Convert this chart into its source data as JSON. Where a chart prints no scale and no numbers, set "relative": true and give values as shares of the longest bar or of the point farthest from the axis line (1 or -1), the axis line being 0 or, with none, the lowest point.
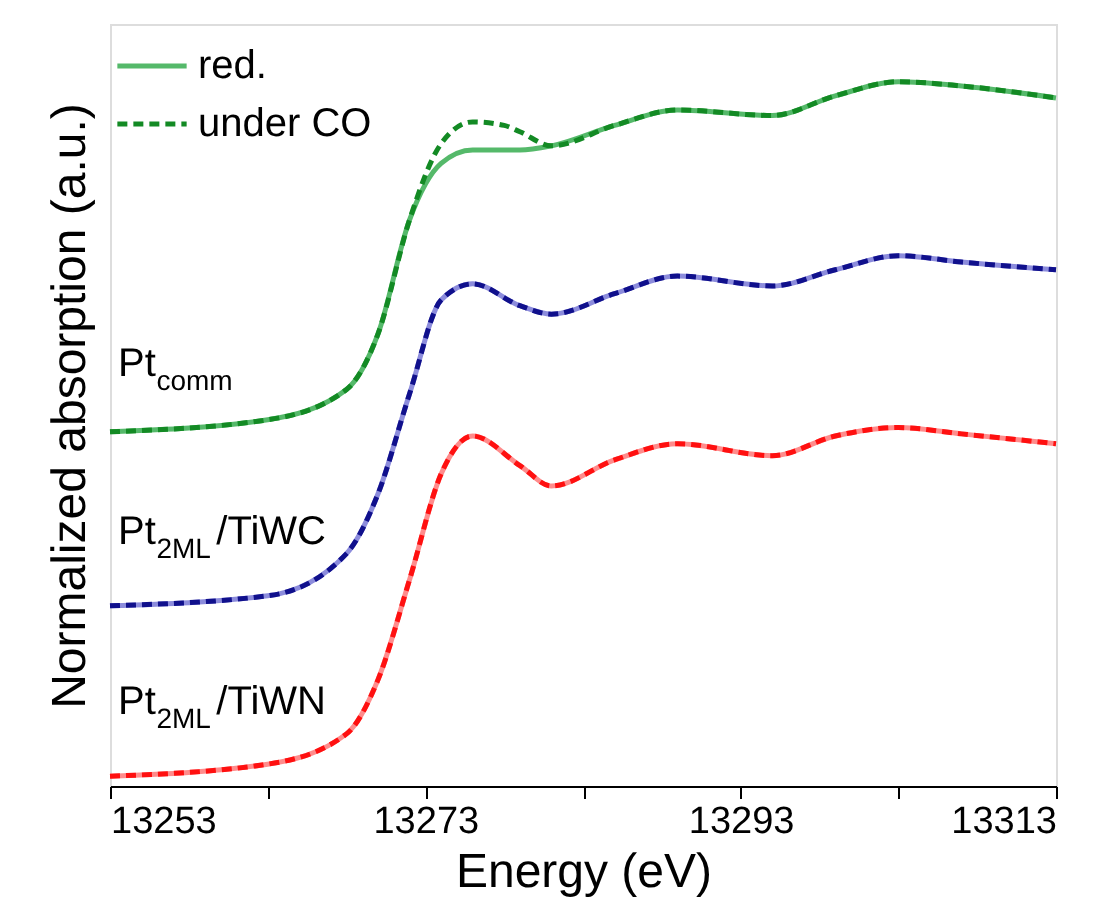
{
  "chart_data": {
    "type": "line",
    "relative": true,
    "xlabel": "Energy (eV)",
    "ylabel": "Normalized absorption (a.u.)",
    "x": [
      13253,
      13263,
      13268,
      13270,
      13272,
      13274,
      13276,
      13279,
      13281,
      13285,
      13289,
      13295,
      13299,
      13303,
      13307,
      13313
    ],
    "xlim": [
      13253,
      13313
    ],
    "xticks": [
      13253,
      {
        "value": 13263,
        "label": null
      },
      13273,
      {
        "value": 13283,
        "label": null
      },
      13293,
      {
        "value": 13303,
        "label": null
      },
      13313
    ],
    "legend": "top left",
    "grid": false,
    "series": [
      {
        "name": "red.",
        "color": "#55b96a",
        "line_style": "solid",
        "values": [
          0.503,
          0.52,
          0.563,
          0.642,
          0.804,
          0.884,
          0.903,
          0.903,
          0.909,
          0.938,
          0.96,
          0.952,
          0.98,
          1.0,
          0.994,
          0.977
        ]
      },
      {
        "name": "under CO",
        "color": "#138a24",
        "line_style": "dashed",
        "x": [
          13253,
          13263,
          13268,
          13270,
          13272,
          13274,
          13276,
          13278,
          13279,
          13281,
          13285,
          13289,
          13295,
          13299,
          13303,
          13307,
          13313
        ],
        "values": [
          0.503,
          0.52,
          0.563,
          0.642,
          0.804,
          0.912,
          0.943,
          0.938,
          0.929,
          0.909,
          0.938,
          0.96,
          0.952,
          0.98,
          1.0,
          0.994,
          0.977
        ]
      },
      {
        "color": "#8c8cdc",
        "line_style": "solid",
        "values": [
          0.256,
          0.27,
          0.33,
          0.415,
          0.557,
          0.69,
          0.713,
          0.682,
          0.67,
          0.699,
          0.724,
          0.71,
          0.733,
          0.753,
          0.744,
          0.733
        ]
      },
      {
        "color": "#10108c",
        "line_style": "dashed",
        "values": [
          0.256,
          0.27,
          0.33,
          0.415,
          0.557,
          0.69,
          0.713,
          0.682,
          0.67,
          0.699,
          0.724,
          0.71,
          0.733,
          0.753,
          0.744,
          0.733
        ]
      },
      {
        "color": "#ff8c8c",
        "line_style": "solid",
        "values": [
          0.014,
          0.031,
          0.074,
          0.151,
          0.293,
          0.443,
          0.497,
          0.455,
          0.426,
          0.463,
          0.486,
          0.469,
          0.497,
          0.509,
          0.5,
          0.486
        ]
      },
      {
        "color": "#ff1010",
        "line_style": "dashed",
        "values": [
          0.014,
          0.031,
          0.074,
          0.151,
          0.293,
          0.443,
          0.497,
          0.455,
          0.426,
          0.463,
          0.486,
          0.469,
          0.497,
          0.509,
          0.5,
          0.486
        ]
      }
    ],
    "annotations": [
      "Pt$_{comm}$",
      "Pt$_{2ML}$/TiWC",
      "Pt$_{2ML}$/TiWN"
    ]
  }
}
